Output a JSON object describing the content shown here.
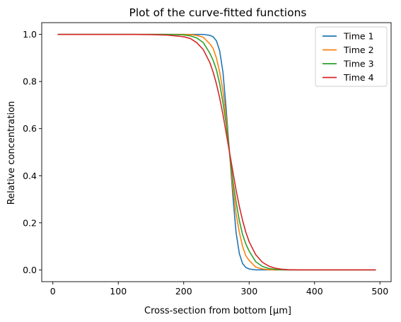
{
  "chart_data": {
    "type": "line",
    "title": "Plot of the curve-fitted functions",
    "xlabel": "Cross-section from bottom [μm]",
    "ylabel": "Relative concentration",
    "xlim": [
      -17,
      517
    ],
    "ylim": [
      -0.05,
      1.05
    ],
    "xticks": [
      0,
      100,
      200,
      300,
      400,
      500
    ],
    "yticks": [
      0.0,
      0.2,
      0.4,
      0.6,
      0.8,
      1.0
    ],
    "xtick_labels": [
      "0",
      "100",
      "200",
      "300",
      "400",
      "500"
    ],
    "ytick_labels": [
      "0.0",
      "0.2",
      "0.4",
      "0.6",
      "0.8",
      "1.0"
    ],
    "grid": false,
    "legend_position": "top-right",
    "x": [
      8,
      25,
      50,
      75,
      100,
      125,
      150,
      175,
      200,
      210,
      220,
      230,
      240,
      245,
      250,
      255,
      260,
      265,
      270,
      275,
      280,
      285,
      290,
      295,
      300,
      310,
      320,
      330,
      340,
      350,
      360,
      375,
      400,
      425,
      450,
      475,
      493
    ],
    "series": [
      {
        "name": "Time 1",
        "color": "#1f77b4",
        "values": [
          1.0,
          1.0,
          1.0,
          1.0,
          1.0,
          1.0,
          1.0,
          1.0,
          1.0,
          1.0,
          1.0,
          1.0,
          0.996,
          0.99,
          0.973,
          0.93,
          0.84,
          0.68,
          0.5,
          0.32,
          0.16,
          0.07,
          0.027,
          0.01,
          0.004,
          0.0,
          0.0,
          0.0,
          0.0,
          0.0,
          0.0,
          0.0,
          0.0,
          0.0,
          0.0,
          0.0,
          0.0
        ]
      },
      {
        "name": "Time 2",
        "color": "#ff7f0e",
        "values": [
          1.0,
          1.0,
          1.0,
          1.0,
          1.0,
          1.0,
          1.0,
          1.0,
          1.0,
          0.999,
          0.996,
          0.988,
          0.96,
          0.94,
          0.9,
          0.84,
          0.76,
          0.65,
          0.5,
          0.35,
          0.24,
          0.16,
          0.1,
          0.06,
          0.04,
          0.012,
          0.004,
          0.001,
          0.0,
          0.0,
          0.0,
          0.0,
          0.0,
          0.0,
          0.0,
          0.0,
          0.0
        ]
      },
      {
        "name": "Time 3",
        "color": "#2ca02c",
        "values": [
          1.0,
          1.0,
          1.0,
          1.0,
          1.0,
          1.0,
          1.0,
          1.0,
          0.998,
          0.994,
          0.985,
          0.965,
          0.92,
          0.89,
          0.85,
          0.79,
          0.71,
          0.62,
          0.5,
          0.38,
          0.29,
          0.21,
          0.15,
          0.11,
          0.08,
          0.035,
          0.015,
          0.006,
          0.002,
          0.001,
          0.0,
          0.0,
          0.0,
          0.0,
          0.0,
          0.0,
          0.0
        ]
      },
      {
        "name": "Time 4",
        "color": "#d62728",
        "values": [
          1.0,
          1.0,
          1.0,
          1.0,
          1.0,
          1.0,
          0.999,
          0.997,
          0.99,
          0.983,
          0.965,
          0.935,
          0.88,
          0.84,
          0.79,
          0.73,
          0.66,
          0.58,
          0.5,
          0.42,
          0.34,
          0.27,
          0.21,
          0.16,
          0.12,
          0.065,
          0.033,
          0.016,
          0.007,
          0.003,
          0.001,
          0.0,
          0.0,
          0.0,
          0.0,
          0.0,
          0.0
        ]
      }
    ]
  }
}
